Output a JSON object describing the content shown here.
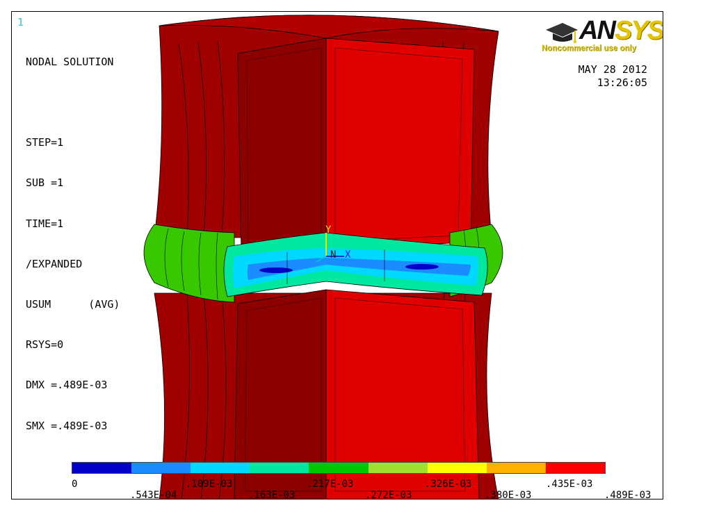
{
  "window_number": "1",
  "info_lines": [
    "NODAL SOLUTION",
    "",
    "STEP=1",
    "SUB =1",
    "TIME=1",
    "/EXPANDED",
    "USUM      (AVG)",
    "RSYS=0",
    "DMX =.489E-03",
    "SMX =.489E-03"
  ],
  "date": "MAY 28 2012",
  "time": "13:26:05",
  "logo": {
    "word_prefix": "AN",
    "word_suffix": "SYS",
    "subtitle": "Noncommercial use only"
  },
  "triad": {
    "y": "Y",
    "x": "X",
    "n": "N"
  },
  "colors": {
    "red": "#e00000",
    "dark_red": "#8c0000",
    "mid_red": "#c00000",
    "green": "#37c800",
    "light_green": "#7fe02a"
  },
  "legend": {
    "colors": [
      "#0000c8",
      "#1a8cff",
      "#00d8ff",
      "#00e8a0",
      "#00c800",
      "#a0e030",
      "#ffff00",
      "#ffb000",
      "#ff0000"
    ],
    "top_labels": [
      "0",
      ".109E-03",
      ".217E-03",
      ".326E-03",
      ".435E-03"
    ],
    "bottom_labels": [
      ".543E-04",
      ".163E-03",
      ".272E-03",
      ".380E-03",
      ".489E-03"
    ]
  }
}
